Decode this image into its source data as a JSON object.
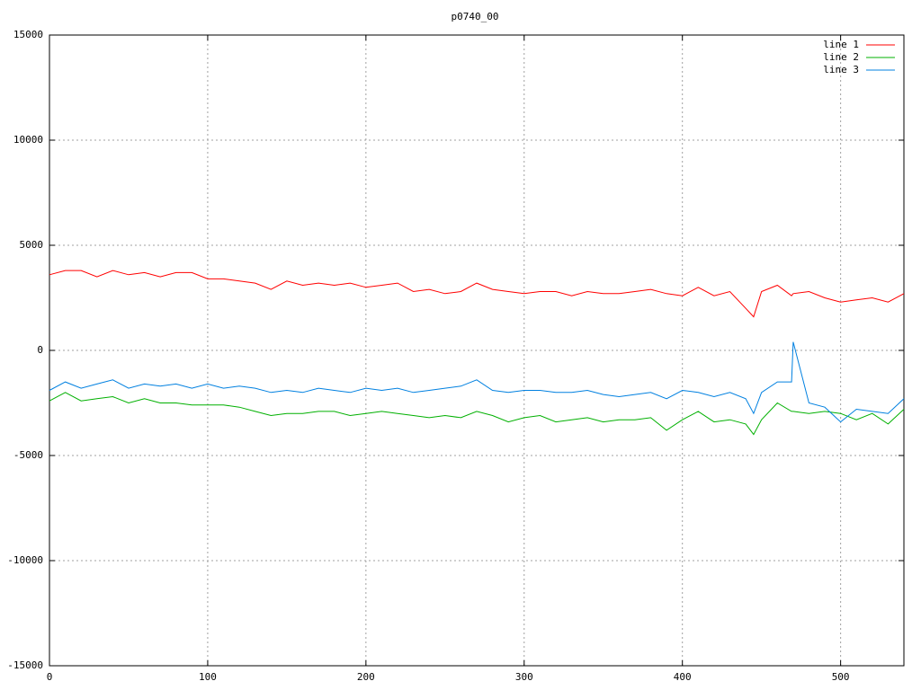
{
  "chart_data": {
    "type": "line",
    "title": "p0740_00",
    "x": [
      0,
      10,
      20,
      30,
      40,
      50,
      60,
      70,
      80,
      90,
      100,
      110,
      120,
      130,
      140,
      150,
      160,
      170,
      180,
      190,
      200,
      210,
      220,
      230,
      240,
      250,
      260,
      270,
      280,
      290,
      300,
      310,
      320,
      330,
      340,
      350,
      360,
      370,
      380,
      390,
      400,
      410,
      420,
      430,
      440,
      445,
      450,
      460,
      469,
      470,
      480,
      490,
      500,
      510,
      520,
      530,
      540
    ],
    "series": [
      {
        "name": "line 1",
        "color": "#ff0000",
        "values": [
          3600,
          3800,
          3800,
          3500,
          3800,
          3600,
          3700,
          3500,
          3700,
          3700,
          3400,
          3400,
          3300,
          3200,
          2900,
          3300,
          3100,
          3200,
          3100,
          3200,
          3000,
          3100,
          3200,
          2800,
          2900,
          2700,
          2800,
          3200,
          2900,
          2800,
          2700,
          2800,
          2800,
          2600,
          2800,
          2700,
          2700,
          2800,
          2900,
          2700,
          2600,
          3000,
          2600,
          2800,
          2000,
          1600,
          2800,
          3100,
          2600,
          2700,
          2800,
          2500,
          2300,
          2400,
          2500,
          2300,
          2700
        ]
      },
      {
        "name": "line 2",
        "color": "#00b000",
        "values": [
          -2400,
          -2000,
          -2400,
          -2300,
          -2200,
          -2500,
          -2300,
          -2500,
          -2500,
          -2600,
          -2600,
          -2600,
          -2700,
          -2900,
          -3100,
          -3000,
          -3000,
          -2900,
          -2900,
          -3100,
          -3000,
          -2900,
          -3000,
          -3100,
          -3200,
          -3100,
          -3200,
          -2900,
          -3100,
          -3400,
          -3200,
          -3100,
          -3400,
          -3300,
          -3200,
          -3400,
          -3300,
          -3300,
          -3200,
          -3800,
          -3300,
          -2900,
          -3400,
          -3300,
          -3500,
          -4000,
          -3300,
          -2500,
          -2900,
          -2900,
          -3000,
          -2900,
          -3000,
          -3300,
          -3000,
          -3500,
          -2800
        ]
      },
      {
        "name": "line 3",
        "color": "#0080e0",
        "values": [
          -1900,
          -1500,
          -1800,
          -1600,
          -1400,
          -1800,
          -1600,
          -1700,
          -1600,
          -1800,
          -1600,
          -1800,
          -1700,
          -1800,
          -2000,
          -1900,
          -2000,
          -1800,
          -1900,
          -2000,
          -1800,
          -1900,
          -1800,
          -2000,
          -1900,
          -1800,
          -1700,
          -1400,
          -1900,
          -2000,
          -1900,
          -1900,
          -2000,
          -2000,
          -1900,
          -2100,
          -2200,
          -2100,
          -2000,
          -2300,
          -1900,
          -2000,
          -2200,
          -2000,
          -2300,
          -3000,
          -2000,
          -1500,
          -1500,
          400,
          -2500,
          -2700,
          -3400,
          -2800,
          -2900,
          -3000,
          -2300
        ]
      }
    ],
    "xlim": [
      0,
      540
    ],
    "ylim": [
      -15000,
      15000
    ],
    "xticks": [
      0,
      100,
      200,
      300,
      400,
      500
    ],
    "yticks": [
      -15000,
      -10000,
      -5000,
      0,
      5000,
      10000,
      15000
    ],
    "grid": true,
    "legend": "upper right"
  }
}
